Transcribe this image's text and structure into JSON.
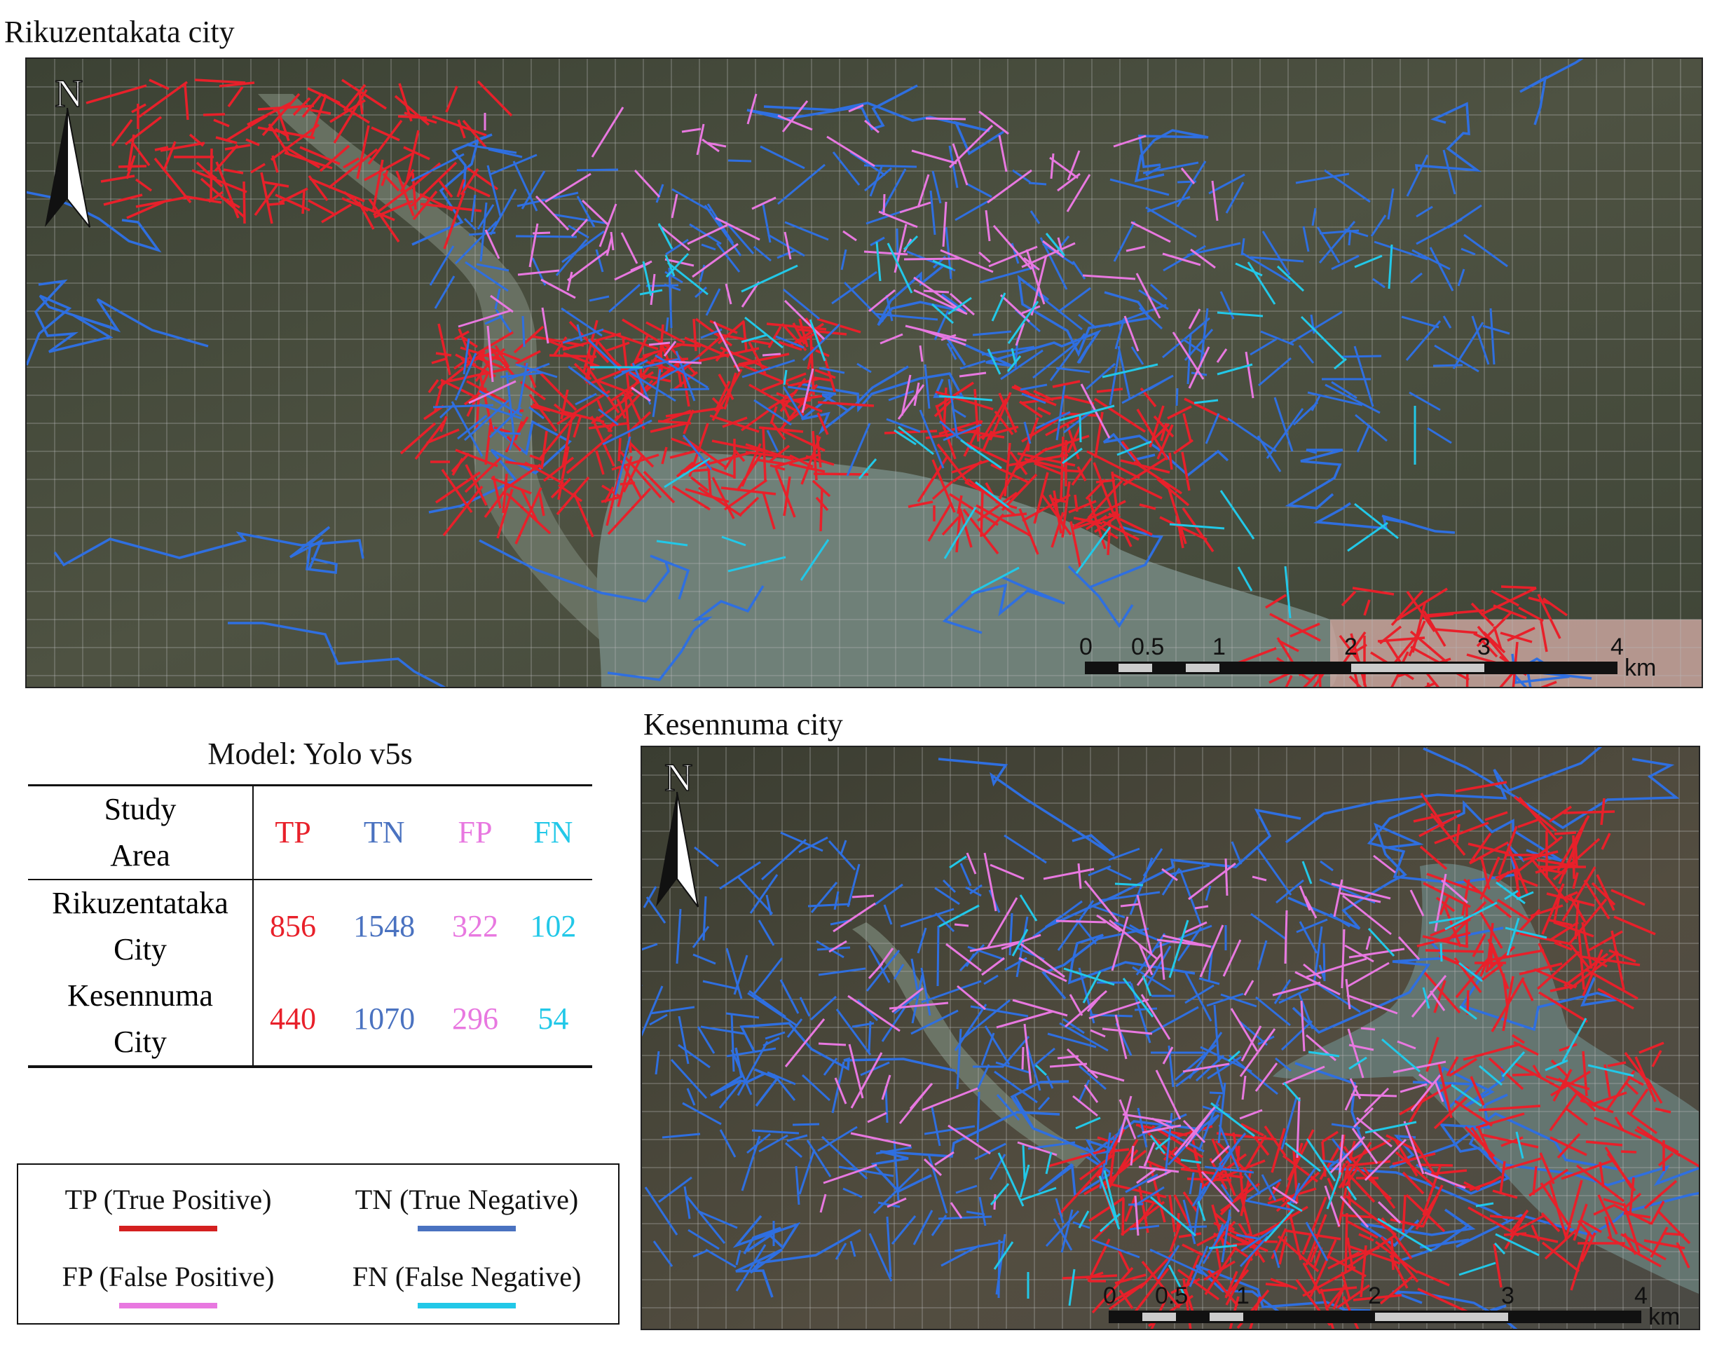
{
  "maps": [
    {
      "id": "rikuzentakata",
      "title": "Rikuzentakata city",
      "north_label": "N",
      "scale": {
        "ticks": [
          "0",
          "0.5",
          "1",
          "2",
          "3",
          "4"
        ],
        "unit": "km"
      }
    },
    {
      "id": "kesennuma",
      "title": "Kesennuma city",
      "north_label": "N",
      "scale": {
        "ticks": [
          "0",
          "0.5",
          "1",
          "2",
          "3",
          "4"
        ],
        "unit": "km"
      }
    }
  ],
  "results": {
    "caption": "Model: Yolo v5s",
    "header": {
      "area_line1": "Study",
      "area_line2": "Area",
      "tp": "TP",
      "tn": "TN",
      "fp": "FP",
      "fn": "FN"
    },
    "rows": [
      {
        "area_line1": "Rikuzentataka",
        "area_line2": "City",
        "tp": "856",
        "tn": "1548",
        "fp": "322",
        "fn": "102"
      },
      {
        "area_line1": "Kesennuma",
        "area_line2": "City",
        "tp": "440",
        "tn": "1070",
        "fp": "296",
        "fn": "54"
      }
    ]
  },
  "legend": [
    {
      "label": "TP (True Positive)",
      "color": "#d42020"
    },
    {
      "label": "TN (True Negative)",
      "color": "#4a72c0"
    },
    {
      "label": "FP (False Positive)",
      "color": "#e878e0"
    },
    {
      "label": "FN (False Negative)",
      "color": "#22c8e8"
    }
  ],
  "colors": {
    "tp": "#e8202a",
    "tn": "#2f6fe0",
    "fp": "#e878e0",
    "fn": "#22c8e8",
    "grid": "#b8b8b8"
  }
}
